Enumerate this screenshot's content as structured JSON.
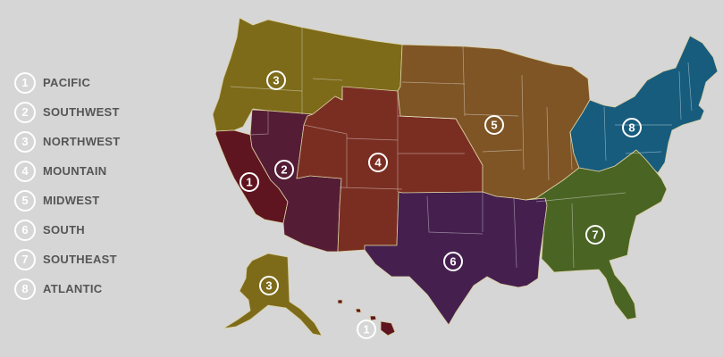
{
  "colors": {
    "background": "#d6d6d6",
    "pacific": "#5f1520",
    "southwest": "#551c35",
    "northwest": "#7d6b1a",
    "mountain": "#7a2e22",
    "midwest": "#7f5526",
    "south": "#45204f",
    "southeast": "#4a6424",
    "atlantic": "#175c7d"
  },
  "legend": [
    {
      "num": "1",
      "label": "PACIFIC"
    },
    {
      "num": "2",
      "label": "SOUTHWEST"
    },
    {
      "num": "3",
      "label": "NORTHWEST"
    },
    {
      "num": "4",
      "label": "MOUNTAIN"
    },
    {
      "num": "5",
      "label": "MIDWEST"
    },
    {
      "num": "6",
      "label": "SOUTH"
    },
    {
      "num": "7",
      "label": "SOUTHEAST"
    },
    {
      "num": "8",
      "label": "ATLANTIC"
    }
  ],
  "map_badges": {
    "pacific": "1",
    "southwest": "2",
    "northwest": "3",
    "mountain": "4",
    "midwest": "5",
    "south": "6",
    "southeast": "7",
    "atlantic": "8",
    "alaska": "3",
    "hawaii": "1"
  }
}
